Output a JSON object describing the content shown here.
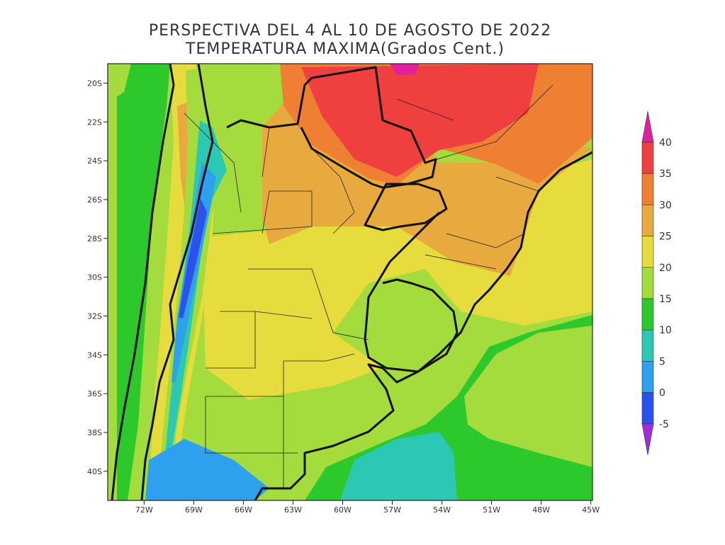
{
  "title": [
    "PERSPECTIVA DEL 4 AL 10 DE AGOSTO DE 2022",
    "TEMPERATURA MAXIMA(Grados Cent.)"
  ],
  "lat_ticks": [
    {
      "value": -20,
      "label": "20S"
    },
    {
      "value": -22,
      "label": "22S"
    },
    {
      "value": -24,
      "label": "24S"
    },
    {
      "value": -26,
      "label": "26S"
    },
    {
      "value": -28,
      "label": "28S"
    },
    {
      "value": -30,
      "label": "30S"
    },
    {
      "value": -32,
      "label": "32S"
    },
    {
      "value": -34,
      "label": "34S"
    },
    {
      "value": -36,
      "label": "36S"
    },
    {
      "value": -38,
      "label": "38S"
    },
    {
      "value": -40,
      "label": "40S"
    }
  ],
  "lon_ticks": [
    {
      "value": -72,
      "label": "72W"
    },
    {
      "value": -69,
      "label": "69W"
    },
    {
      "value": -66,
      "label": "66W"
    },
    {
      "value": -63,
      "label": "63W"
    },
    {
      "value": -60,
      "label": "60W"
    },
    {
      "value": -57,
      "label": "57W"
    },
    {
      "value": -54,
      "label": "54W"
    },
    {
      "value": -51,
      "label": "51W"
    },
    {
      "value": -48,
      "label": "48W"
    },
    {
      "value": -45,
      "label": "45W"
    }
  ],
  "colorbar": {
    "levels": [
      40,
      35,
      30,
      25,
      20,
      15,
      10,
      5,
      0,
      -5
    ],
    "colors": [
      "#e11f9f",
      "#f03f3f",
      "#ef8033",
      "#e8aa3e",
      "#e6dc3e",
      "#a3dc3c",
      "#2cc82c",
      "#2cc8b4",
      "#2ea0ee",
      "#2c52ee",
      "#a02cdc"
    ]
  }
}
